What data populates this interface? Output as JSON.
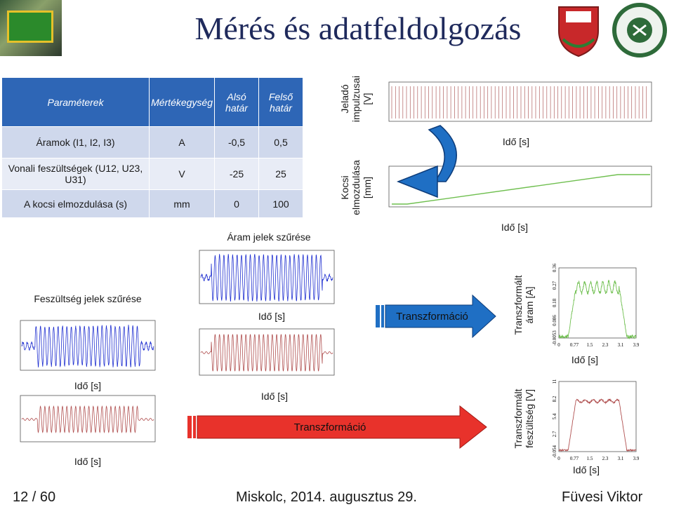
{
  "title": "Mérés és adatfeldolgozás",
  "table": {
    "headers": [
      "Paraméterek",
      "Mértékegység",
      "Alsó határ",
      "Felső határ"
    ],
    "rows": [
      {
        "param": "Áramok (I1, I2, I3)",
        "unit": "A",
        "low": "-0,5",
        "high": "0,5"
      },
      {
        "param": "Vonali feszültségek (U12, U23, U31)",
        "unit": "V",
        "low": "-25",
        "high": "25"
      },
      {
        "param": "A kocsi elmozdulása (s)",
        "unit": "mm",
        "low": "0",
        "high": "100"
      }
    ]
  },
  "labels": {
    "jelado": "Jeladó impulzusai [V]",
    "kocsi": "Kocsi elmozdulása [mm]",
    "ido": "Idő [s]",
    "aram_szurese": "Áram jelek szűrése",
    "fesz_szurese": "Feszültség jelek szűrése",
    "transzformacio": "Transzformáció",
    "transz_aram": "Transzformált áram [A]",
    "transz_fesz": "Transzformált feszültség [V]"
  },
  "ticks": {
    "aram_y": [
      "0.36",
      "0.27",
      "0.18",
      "0.086",
      "-0.0053"
    ],
    "aram_x": [
      "0",
      "0.77",
      "1.5",
      "2.3",
      "3.1",
      "3.9"
    ],
    "fesz_y": [
      "11",
      "8.2",
      "5.4",
      "2.7",
      "-0.054"
    ],
    "fesz_x": [
      "0",
      "0.77",
      "1.5",
      "2.3",
      "3.1",
      "3.9"
    ]
  },
  "footer": {
    "page": "12 / 60",
    "date": "Miskolc, 2014. augusztus 29.",
    "author": "Füvesi Viktor"
  },
  "colors": {
    "header_blue": "#2e66b6",
    "signal_blue": "#1f2fd0",
    "signal_red": "#b05050",
    "signal_green": "#6fbf4f",
    "arrow_red": "#e8322b",
    "arrow_blue": "#1f6fc4"
  }
}
